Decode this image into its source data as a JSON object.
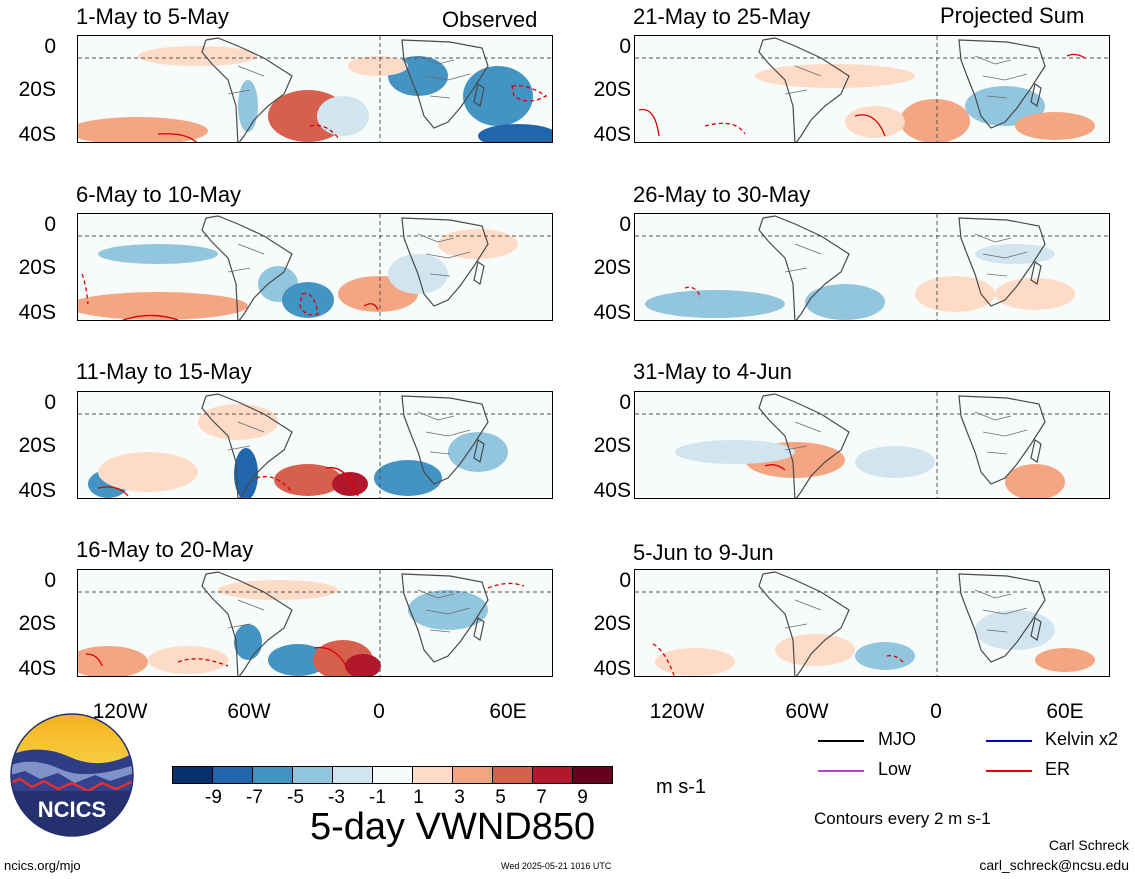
{
  "header": {
    "left_label": "Observed",
    "right_label": "Projected Sum"
  },
  "panels": {
    "left": [
      "1-May to 5-May",
      "6-May to 10-May",
      "11-May to 15-May",
      "16-May to 20-May"
    ],
    "right": [
      "21-May to 25-May",
      "26-May to 30-May",
      "31-May to 4-Jun",
      "5-Jun to 9-Jun"
    ]
  },
  "axes": {
    "lat_labels": [
      "0",
      "20S",
      "40S"
    ],
    "lon_labels": [
      "120W",
      "60W",
      "0",
      "60E"
    ]
  },
  "colorbar": {
    "tick_labels": [
      "-9",
      "-7",
      "-5",
      "-3",
      "-1",
      "1",
      "3",
      "5",
      "7",
      "9"
    ],
    "colors": [
      "#08306b",
      "#2166ac",
      "#4393c3",
      "#92c5de",
      "#d1e5f0",
      "#f7fbf9",
      "#fddbc7",
      "#f4a582",
      "#d6604d",
      "#b2182b",
      "#67001f"
    ],
    "units": "m s-1"
  },
  "main_title": "5-day VWND850",
  "legend": {
    "mjo": "MJO",
    "kelvin": "Kelvin x2",
    "low": "Low",
    "er": "ER",
    "colors": {
      "mjo": "#000000",
      "kelvin": "#0000cc",
      "low": "#b044d8",
      "er": "#dd0000"
    },
    "contours_note": "Contours every 2 m s-1"
  },
  "credits": {
    "author": "Carl Schreck",
    "email": "carl_schreck@ncsu.edu",
    "site": "ncics.org/mjo",
    "timestamp": "Wed 2025-05-21 1016 UTC",
    "logo_text": "NCICS"
  }
}
